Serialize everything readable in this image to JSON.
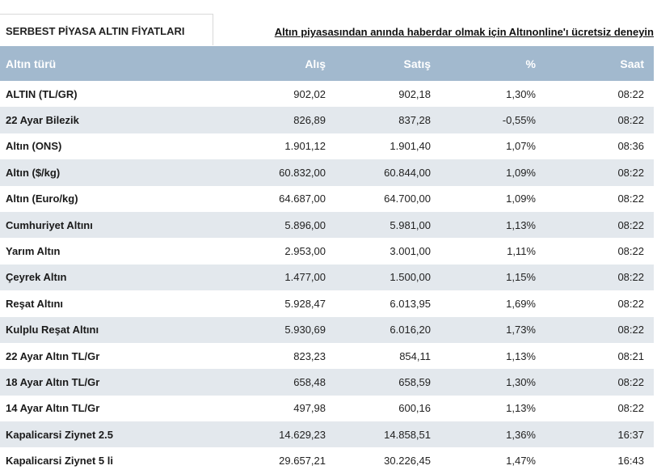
{
  "header": {
    "tab_label": "SERBEST PİYASA ALTIN FİYATLARI",
    "promo_link": "Altın piyasasından anında haberdar olmak için Altınonline'ı ücretsiz deneyin"
  },
  "table": {
    "columns": [
      "Altın türü",
      "Alış",
      "Satış",
      "%",
      "Saat"
    ],
    "rows": [
      {
        "name": "ALTIN (TL/GR)",
        "buy": "902,02",
        "sell": "902,18",
        "pct": "1,30%",
        "time": "08:22"
      },
      {
        "name": "22 Ayar Bilezik",
        "buy": "826,89",
        "sell": "837,28",
        "pct": "-0,55%",
        "time": "08:22"
      },
      {
        "name": "Altın (ONS)",
        "buy": "1.901,12",
        "sell": "1.901,40",
        "pct": "1,07%",
        "time": "08:36"
      },
      {
        "name": "Altın ($/kg)",
        "buy": "60.832,00",
        "sell": "60.844,00",
        "pct": "1,09%",
        "time": "08:22"
      },
      {
        "name": "Altın (Euro/kg)",
        "buy": "64.687,00",
        "sell": "64.700,00",
        "pct": "1,09%",
        "time": "08:22"
      },
      {
        "name": "Cumhuriyet Altını",
        "buy": "5.896,00",
        "sell": "5.981,00",
        "pct": "1,13%",
        "time": "08:22"
      },
      {
        "name": "Yarım Altın",
        "buy": "2.953,00",
        "sell": "3.001,00",
        "pct": "1,11%",
        "time": "08:22"
      },
      {
        "name": "Çeyrek Altın",
        "buy": "1.477,00",
        "sell": "1.500,00",
        "pct": "1,15%",
        "time": "08:22"
      },
      {
        "name": "Reşat Altını",
        "buy": "5.928,47",
        "sell": "6.013,95",
        "pct": "1,69%",
        "time": "08:22"
      },
      {
        "name": "Kulplu Reşat Altını",
        "buy": "5.930,69",
        "sell": "6.016,20",
        "pct": "1,73%",
        "time": "08:22"
      },
      {
        "name": "22 Ayar Altın TL/Gr",
        "buy": "823,23",
        "sell": "854,11",
        "pct": "1,13%",
        "time": "08:21"
      },
      {
        "name": "18 Ayar Altın TL/Gr",
        "buy": "658,48",
        "sell": "658,59",
        "pct": "1,30%",
        "time": "08:22"
      },
      {
        "name": "14 Ayar Altın TL/Gr",
        "buy": "497,98",
        "sell": "600,16",
        "pct": "1,13%",
        "time": "08:22"
      },
      {
        "name": "Kapalicarsi Ziynet 2.5",
        "buy": "14.629,23",
        "sell": "14.858,51",
        "pct": "1,36%",
        "time": "16:37"
      },
      {
        "name": "Kapalicarsi Ziynet 5 li",
        "buy": "29.657,21",
        "sell": "30.226,45",
        "pct": "1,47%",
        "time": "16:43"
      }
    ]
  }
}
